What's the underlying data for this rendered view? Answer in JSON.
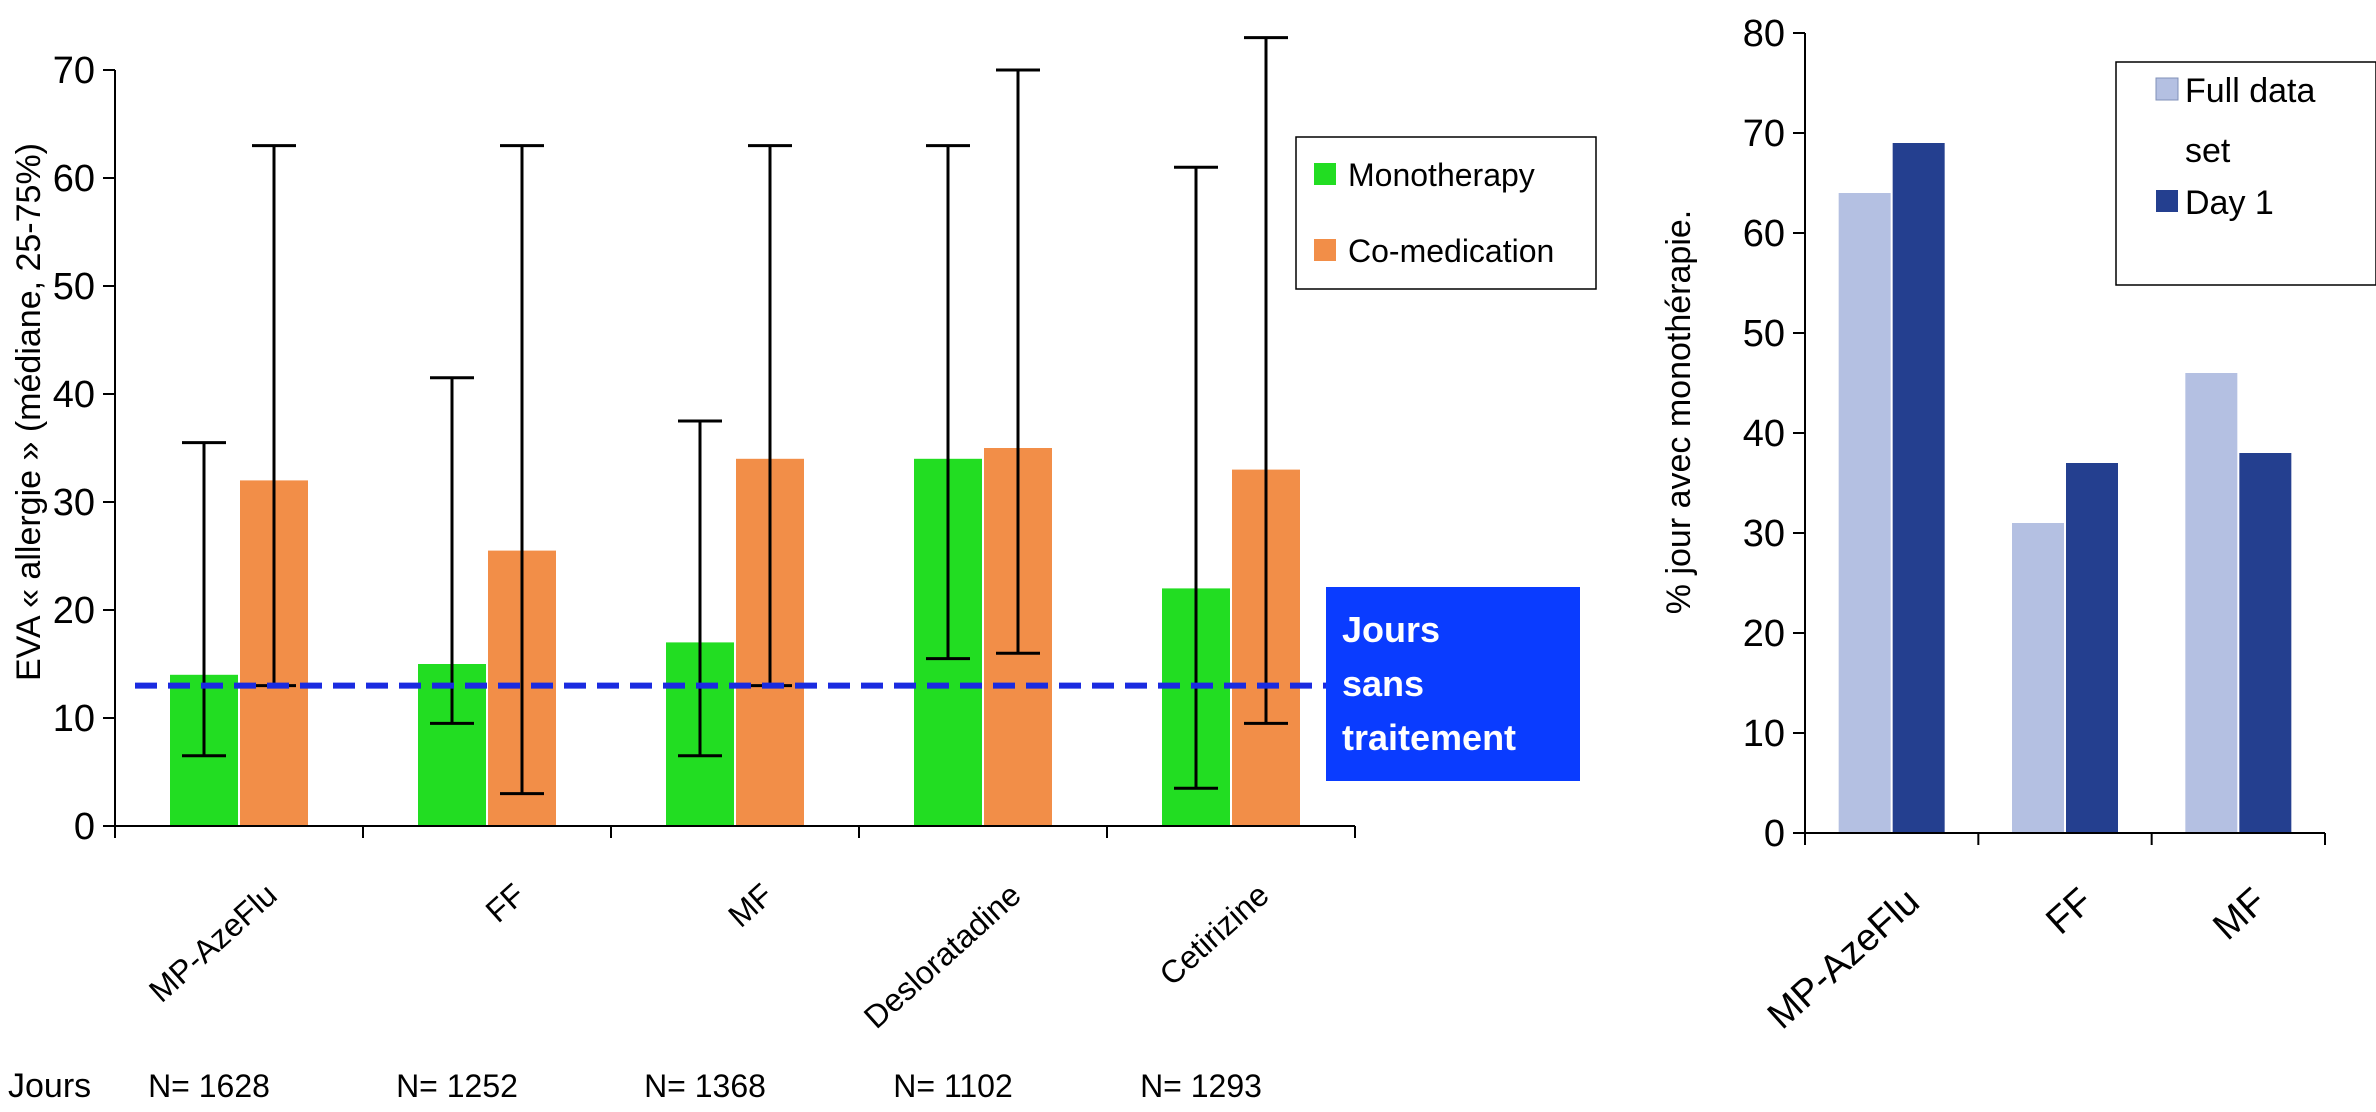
{
  "colors": {
    "monotherapy": "#22dd22",
    "co_medication": "#f28e48",
    "reference_line": "#1a2be0",
    "annotation_box": "#0a3cff",
    "full_data_set": "#b4c0e2",
    "day_1": "#243f8f",
    "axis": "#000000"
  },
  "chart_data": [
    {
      "type": "bar",
      "ylabel": "EVA « allergie » (médiane, 25-75%)",
      "ylim": [
        0,
        70
      ],
      "yticks": [
        "0",
        "10",
        "20",
        "30",
        "40",
        "50",
        "60",
        "70"
      ],
      "categories": [
        "MP-AzeFlu",
        "FF",
        "MF",
        "Desloratadine",
        "Cetirizine"
      ],
      "legend": {
        "position": "top-right",
        "items": [
          "Monotherapy",
          "Co-medication"
        ]
      },
      "series": [
        {
          "name": "Monotherapy",
          "values": [
            14,
            15,
            17,
            34,
            22
          ],
          "error_low": [
            6.5,
            9.5,
            6.5,
            15.5,
            3.5
          ],
          "error_high": [
            35.5,
            41.5,
            37.5,
            63,
            61
          ]
        },
        {
          "name": "Co-medication",
          "values": [
            32,
            25.5,
            34,
            35,
            33
          ],
          "error_low": [
            13,
            3,
            13,
            16,
            9.5
          ],
          "error_high": [
            63,
            63,
            63,
            70,
            73
          ]
        }
      ],
      "reference_line": {
        "value": 13,
        "style": "dashed"
      },
      "annotation": [
        "Jours",
        "sans",
        "traitement"
      ],
      "footer_label": "Jours",
      "counts": [
        "N= 1628",
        "N= 1252",
        "N= 1368",
        "N= 1102",
        "N= 1293"
      ]
    },
    {
      "type": "bar",
      "ylabel": "% jour avec monothérapie.",
      "ylim": [
        0,
        80
      ],
      "yticks": [
        "0",
        "10",
        "20",
        "30",
        "40",
        "50",
        "60",
        "70",
        "80"
      ],
      "categories": [
        "MP-AzeFlu",
        "FF",
        "MF"
      ],
      "legend": {
        "position": "top-right",
        "items": [
          "Full data set",
          "Day 1"
        ]
      },
      "series": [
        {
          "name": "Full data set",
          "values": [
            64,
            31,
            46
          ]
        },
        {
          "name": "Day 1",
          "values": [
            69,
            37,
            38
          ]
        }
      ]
    }
  ],
  "legend_left": {
    "item1": "Monotherapy",
    "item2": "Co-medication"
  },
  "legend_right": {
    "item1_line1": "Full data",
    "item1_line2": "set",
    "item2": "Day 1"
  }
}
